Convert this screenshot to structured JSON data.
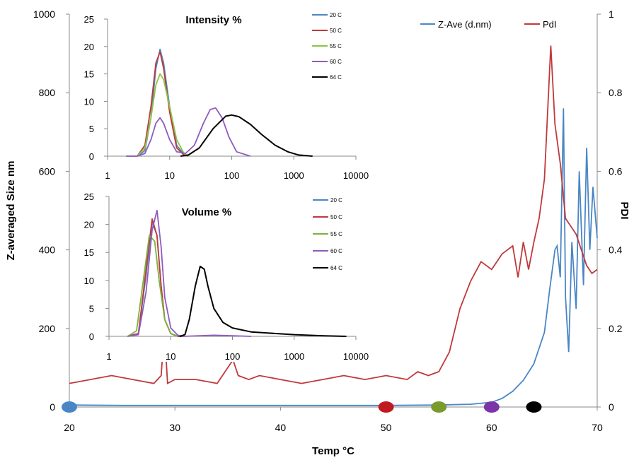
{
  "chart_data": [
    {
      "id": "main",
      "type": "line",
      "xlabel": "Temp °C",
      "ylabel": "Z-averaged Size nm",
      "y2label": "PDI",
      "xlim": [
        20,
        70
      ],
      "ylim": [
        0,
        1000
      ],
      "y2lim": [
        0,
        1
      ],
      "x_ticks": [
        "20",
        "30",
        "40",
        "50",
        "60",
        "70"
      ],
      "y_ticks": [
        "0",
        "200",
        "400",
        "600",
        "800",
        "1000"
      ],
      "y2_ticks": [
        "0",
        "0.2",
        "0.4",
        "0.6",
        "0.8",
        "1"
      ],
      "legend_position": "top-right",
      "series": [
        {
          "name": "Z-Ave (d.nm)",
          "axis": "left",
          "color": "#4a86c6",
          "x": [
            20,
            25,
            30,
            35,
            40,
            45,
            50,
            55,
            58,
            60,
            61,
            62,
            63,
            64,
            65,
            65.5,
            66,
            66.2,
            66.5,
            66.8,
            67,
            67.3,
            67.6,
            68,
            68.3,
            68.7,
            69,
            69.3,
            69.6,
            70
          ],
          "y": [
            5,
            4,
            4,
            4,
            4,
            4,
            4,
            5,
            7,
            12,
            22,
            40,
            68,
            110,
            190,
            300,
            400,
            410,
            330,
            760,
            280,
            140,
            420,
            250,
            600,
            310,
            660,
            400,
            560,
            430
          ]
        },
        {
          "name": "PdI",
          "axis": "right",
          "color": "#c0393b",
          "x": [
            20,
            22,
            24,
            26,
            28,
            28.7,
            29,
            29.3,
            30,
            32,
            34,
            35.5,
            36,
            37,
            38,
            40,
            42,
            44,
            46,
            48,
            50,
            52,
            53,
            54,
            55,
            56,
            57,
            58,
            59,
            60,
            61,
            62,
            62.5,
            63,
            63.5,
            64,
            64.5,
            65,
            65.3,
            65.6,
            66,
            66.5,
            67,
            67.5,
            68,
            68.5,
            69,
            69.5,
            70
          ],
          "y": [
            0.06,
            0.07,
            0.08,
            0.07,
            0.06,
            0.08,
            0.2,
            0.06,
            0.07,
            0.07,
            0.06,
            0.12,
            0.08,
            0.07,
            0.08,
            0.07,
            0.06,
            0.07,
            0.08,
            0.07,
            0.08,
            0.07,
            0.09,
            0.08,
            0.09,
            0.14,
            0.25,
            0.32,
            0.37,
            0.35,
            0.39,
            0.41,
            0.33,
            0.42,
            0.35,
            0.42,
            0.48,
            0.58,
            0.75,
            0.92,
            0.72,
            0.62,
            0.48,
            0.46,
            0.44,
            0.4,
            0.36,
            0.34,
            0.35
          ]
        }
      ],
      "markers": [
        {
          "x": 20,
          "color": "#4a86c6"
        },
        {
          "x": 50,
          "color": "#c0191f"
        },
        {
          "x": 55,
          "color": "#7a9a2e"
        },
        {
          "x": 60,
          "color": "#7b35a8"
        },
        {
          "x": 64,
          "color": "#000000"
        }
      ]
    },
    {
      "id": "intensity",
      "type": "line",
      "title": "Intensity %",
      "xscale": "log",
      "xlim": [
        1,
        10000
      ],
      "ylim": [
        0,
        25
      ],
      "x_ticks": [
        "1",
        "10",
        "100",
        "1000",
        "10000"
      ],
      "y_ticks": [
        "0",
        "5",
        "10",
        "15",
        "20",
        "25"
      ],
      "legend_position": "top-right",
      "series": [
        {
          "name": "20 C",
          "color": "#4a86c6",
          "x": [
            2,
            3,
            4,
            5,
            6,
            7,
            8,
            10,
            13,
            17,
            20
          ],
          "y": [
            0,
            0,
            1,
            7,
            16,
            19.5,
            17,
            9,
            2,
            0.3,
            0
          ]
        },
        {
          "name": "50 C",
          "color": "#c0393b",
          "x": [
            2,
            3,
            4,
            5,
            6,
            7,
            8,
            10,
            13,
            17,
            20
          ],
          "y": [
            0,
            0,
            2,
            9,
            17,
            19,
            16,
            8,
            1.5,
            0.2,
            0
          ]
        },
        {
          "name": "55 C",
          "color": "#8cc63f",
          "x": [
            2,
            3,
            4,
            5,
            6,
            7,
            8,
            10,
            13,
            17,
            20
          ],
          "y": [
            0,
            0,
            1.5,
            7,
            13,
            15,
            14,
            9,
            3,
            0.5,
            0
          ]
        },
        {
          "name": "60 C",
          "color": "#8e5bbf",
          "x": [
            2,
            3,
            4,
            5,
            6,
            7,
            8,
            10,
            13,
            18,
            25,
            35,
            45,
            55,
            70,
            90,
            120,
            200
          ],
          "y": [
            0,
            0,
            0.5,
            3,
            6,
            7,
            6,
            3,
            0.8,
            0.5,
            2,
            6,
            8.5,
            8.8,
            7,
            3.5,
            0.8,
            0
          ]
        },
        {
          "name": "64 C",
          "color": "#000000",
          "x": [
            15,
            20,
            30,
            50,
            80,
            100,
            130,
            200,
            300,
            500,
            800,
            1200,
            2000
          ],
          "y": [
            0,
            0.2,
            1.5,
            5,
            7.3,
            7.5,
            7.2,
            5.8,
            4,
            2,
            0.8,
            0.2,
            0
          ]
        }
      ]
    },
    {
      "id": "volume",
      "type": "line",
      "title": "Volume %",
      "xscale": "log",
      "xlim": [
        1,
        10000
      ],
      "ylim": [
        0,
        25
      ],
      "x_ticks": [
        "1",
        "10",
        "100",
        "1000",
        "10000"
      ],
      "y_ticks": [
        "0",
        "5",
        "10",
        "15",
        "20",
        "25"
      ],
      "legend_position": "top-right",
      "series": [
        {
          "name": "20 C",
          "color": "#4a86c6",
          "x": [
            2,
            3,
            4,
            5,
            6,
            7,
            8,
            10,
            13,
            16
          ],
          "y": [
            0,
            0.5,
            11,
            20.5,
            18,
            9,
            3,
            0.5,
            0,
            0
          ]
        },
        {
          "name": "50 C",
          "color": "#c0393b",
          "x": [
            2,
            3,
            4,
            5,
            6,
            7,
            8,
            10,
            13,
            16
          ],
          "y": [
            0,
            0.5,
            12,
            21,
            18,
            9,
            3,
            0.5,
            0,
            0
          ]
        },
        {
          "name": "55 C",
          "color": "#7ab33c",
          "x": [
            2,
            2.8,
            3.5,
            4.5,
            5.5,
            6.5,
            8,
            10,
            13
          ],
          "y": [
            0,
            1,
            9,
            18,
            17,
            10,
            3,
            0.5,
            0
          ]
        },
        {
          "name": "60 C",
          "color": "#8e5bbf",
          "x": [
            2,
            3,
            4,
            5,
            6,
            7,
            8,
            10,
            13,
            16,
            50,
            100,
            200
          ],
          "y": [
            0,
            0.3,
            8,
            19,
            22.5,
            16,
            7,
            1.5,
            0.2,
            0,
            0.2,
            0.1,
            0
          ]
        },
        {
          "name": "64 C",
          "color": "#000000",
          "x": [
            14,
            17,
            20,
            25,
            30,
            35,
            40,
            50,
            70,
            100,
            200,
            500,
            1000,
            3000,
            7000
          ],
          "y": [
            0,
            0.3,
            3,
            9,
            12.5,
            12,
            9,
            5,
            2.5,
            1.5,
            0.8,
            0.5,
            0.3,
            0.1,
            0
          ]
        }
      ]
    }
  ]
}
